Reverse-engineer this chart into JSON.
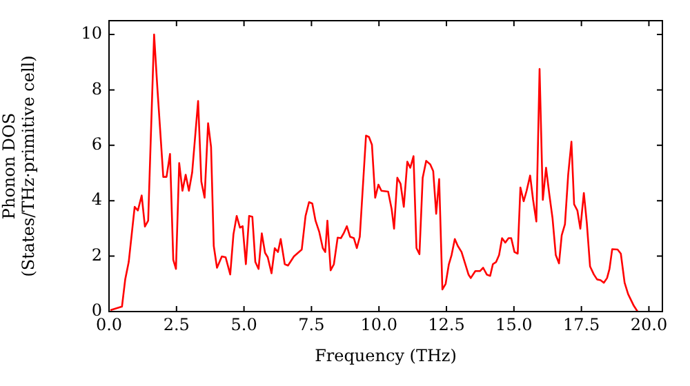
{
  "chart_data": {
    "type": "line",
    "xlabel": "Frequency (THz)",
    "ylabel": "Phonon DOS\n(States/THz·primitive cell)",
    "xlim": [
      0,
      20.5
    ],
    "ylim": [
      0,
      10.5
    ],
    "xticks": [
      {
        "value": 0,
        "label": "0.0"
      },
      {
        "value": 2.5,
        "label": "2.5"
      },
      {
        "value": 5,
        "label": "5.0"
      },
      {
        "value": 7.5,
        "label": "7.5"
      },
      {
        "value": 10,
        "label": "10.0"
      },
      {
        "value": 12.5,
        "label": "12.5"
      },
      {
        "value": 15,
        "label": "15.0"
      },
      {
        "value": 17.5,
        "label": "17.5"
      },
      {
        "value": 20,
        "label": "20.0"
      }
    ],
    "yticks": [
      0,
      2,
      4,
      6,
      8,
      10
    ],
    "grid": false,
    "legend": false,
    "marker": "none",
    "line_style": "solid",
    "series": [
      {
        "color": "#ff0000",
        "x": [
          0.05,
          0.48,
          0.6,
          0.73,
          0.95,
          1.07,
          1.21,
          1.33,
          1.45,
          1.67,
          1.79,
          2.01,
          2.13,
          2.26,
          2.38,
          2.48,
          2.6,
          2.72,
          2.84,
          2.96,
          3.08,
          3.3,
          3.42,
          3.54,
          3.67,
          3.78,
          3.88,
          4.0,
          4.18,
          4.32,
          4.49,
          4.61,
          4.73,
          4.85,
          4.95,
          5.07,
          5.19,
          5.31,
          5.42,
          5.54,
          5.66,
          5.78,
          5.88,
          6.02,
          6.14,
          6.26,
          6.36,
          6.51,
          6.63,
          6.85,
          7.14,
          7.28,
          7.41,
          7.53,
          7.65,
          7.79,
          7.92,
          8.01,
          8.09,
          8.21,
          8.33,
          8.47,
          8.59,
          8.69,
          8.81,
          8.93,
          9.07,
          9.18,
          9.29,
          9.52,
          9.63,
          9.74,
          9.86,
          9.98,
          10.09,
          10.34,
          10.47,
          10.56,
          10.68,
          10.8,
          10.92,
          11.05,
          11.16,
          11.28,
          11.39,
          11.5,
          11.62,
          11.75,
          11.9,
          12.01,
          12.12,
          12.23,
          12.35,
          12.47,
          12.59,
          12.69,
          12.81,
          12.92,
          13.06,
          13.2,
          13.32,
          13.4,
          13.57,
          13.74,
          13.86,
          14.0,
          14.12,
          14.22,
          14.34,
          14.45,
          14.56,
          14.68,
          14.8,
          14.9,
          15.02,
          15.14,
          15.24,
          15.36,
          15.47,
          15.6,
          15.71,
          15.83,
          15.95,
          16.07,
          16.19,
          16.31,
          16.43,
          16.55,
          16.67,
          16.77,
          16.89,
          17.01,
          17.13,
          17.23,
          17.35,
          17.46,
          17.59,
          17.7,
          17.82,
          17.96,
          18.08,
          18.21,
          18.33,
          18.45,
          18.54,
          18.64,
          18.84,
          18.96,
          19.1,
          19.23,
          19.44,
          19.58
        ],
        "values": [
          0.05,
          0.18,
          1.16,
          1.79,
          3.78,
          3.65,
          4.19,
          3.07,
          3.28,
          10.0,
          8.09,
          4.86,
          4.86,
          5.69,
          1.87,
          1.54,
          5.36,
          4.36,
          4.94,
          4.36,
          5.02,
          7.6,
          4.69,
          4.11,
          6.8,
          5.94,
          2.37,
          1.58,
          1.99,
          1.96,
          1.34,
          2.79,
          3.45,
          3.03,
          3.08,
          1.71,
          3.45,
          3.42,
          1.79,
          1.54,
          2.82,
          2.12,
          1.96,
          1.38,
          2.29,
          2.15,
          2.62,
          1.71,
          1.66,
          1.99,
          2.24,
          3.45,
          3.95,
          3.9,
          3.28,
          2.87,
          2.29,
          2.15,
          3.28,
          1.49,
          1.71,
          2.67,
          2.65,
          2.82,
          3.08,
          2.7,
          2.65,
          2.29,
          2.7,
          6.35,
          6.3,
          6.02,
          4.11,
          4.58,
          4.36,
          4.33,
          3.7,
          2.99,
          4.83,
          4.61,
          3.78,
          5.41,
          5.19,
          5.61,
          2.29,
          2.07,
          4.83,
          5.44,
          5.31,
          5.07,
          3.53,
          4.78,
          0.8,
          1.0,
          1.71,
          2.04,
          2.62,
          2.37,
          2.15,
          1.71,
          1.33,
          1.21,
          1.46,
          1.46,
          1.58,
          1.33,
          1.29,
          1.71,
          1.79,
          2.04,
          2.65,
          2.49,
          2.65,
          2.65,
          2.15,
          2.09,
          4.48,
          3.98,
          4.36,
          4.91,
          4.03,
          3.25,
          8.76,
          4.03,
          5.19,
          4.24,
          3.37,
          2.04,
          1.74,
          2.75,
          3.15,
          4.94,
          6.13,
          3.87,
          3.65,
          2.99,
          4.28,
          3.2,
          1.63,
          1.34,
          1.16,
          1.13,
          1.04,
          1.21,
          1.54,
          2.25,
          2.24,
          2.09,
          1.04,
          0.63,
          0.21,
          0
        ]
      }
    ]
  }
}
